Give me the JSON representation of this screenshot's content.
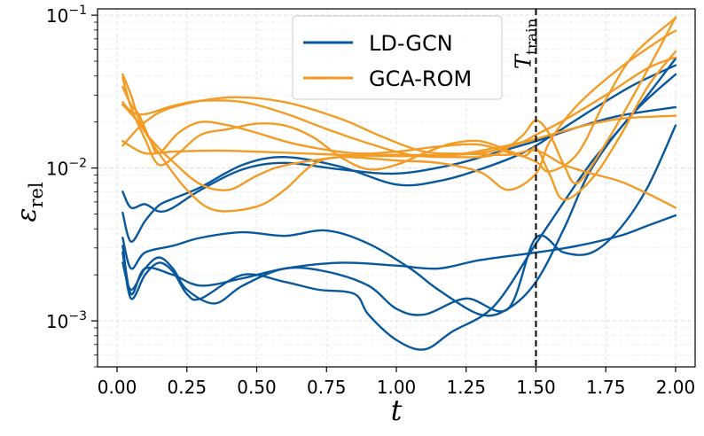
{
  "chart_data": {
    "type": "line",
    "xlabel": "t",
    "ylabel": "ε",
    "ylabel_sub": "rel",
    "yscale": "log",
    "xlim": [
      -0.07,
      2.07
    ],
    "ylim": [
      0.0005,
      0.11
    ],
    "x_ticks": [
      0,
      0.25,
      0.5,
      0.75,
      1.0,
      1.25,
      1.5,
      1.75,
      2.0
    ],
    "x_tick_labels": [
      "0.00",
      "0.25",
      "0.50",
      "0.75",
      "1.00",
      "1.25",
      "1.50",
      "1.75",
      "2.00"
    ],
    "y_ticks": [
      0.001,
      0.01,
      0.1
    ],
    "y_tick_base": "10",
    "y_tick_exponents": [
      "−3",
      "−2",
      "−1"
    ],
    "grid": true,
    "legend_position": "top-center",
    "legend": [
      {
        "label": "LD-GCN",
        "color": "#08589e"
      },
      {
        "label": "GCA-ROM",
        "color": "#f39c25"
      }
    ],
    "vline": {
      "x": 1.5,
      "label": "T",
      "label_sub": "train",
      "style": "dashed"
    },
    "series": [
      {
        "name": "LD-GCN",
        "color": "#08589e",
        "points": [
          [
            0.02,
            0.007
          ],
          [
            0.05,
            0.0055
          ],
          [
            0.1,
            0.0058
          ],
          [
            0.15,
            0.0052
          ],
          [
            0.2,
            0.0055
          ],
          [
            0.3,
            0.0072
          ],
          [
            0.45,
            0.0098
          ],
          [
            0.6,
            0.0108
          ],
          [
            0.8,
            0.0098
          ],
          [
            1.0,
            0.0092
          ],
          [
            1.2,
            0.0105
          ],
          [
            1.35,
            0.0125
          ],
          [
            1.5,
            0.015
          ],
          [
            1.65,
            0.0185
          ],
          [
            1.8,
            0.022
          ],
          [
            2.0,
            0.025
          ]
        ]
      },
      {
        "name": "LD-GCN",
        "color": "#08589e",
        "points": [
          [
            0.02,
            0.0051
          ],
          [
            0.05,
            0.0033
          ],
          [
            0.1,
            0.0045
          ],
          [
            0.15,
            0.0057
          ],
          [
            0.2,
            0.0063
          ],
          [
            0.3,
            0.0075
          ],
          [
            0.45,
            0.0105
          ],
          [
            0.6,
            0.0118
          ],
          [
            0.8,
            0.0102
          ],
          [
            1.0,
            0.0078
          ],
          [
            1.15,
            0.0082
          ],
          [
            1.3,
            0.0098
          ],
          [
            1.45,
            0.0125
          ],
          [
            1.55,
            0.016
          ],
          [
            1.7,
            0.024
          ],
          [
            1.85,
            0.035
          ],
          [
            2.0,
            0.047
          ]
        ]
      },
      {
        "name": "LD-GCN",
        "color": "#08589e",
        "points": [
          [
            0.02,
            0.0035
          ],
          [
            0.05,
            0.0022
          ],
          [
            0.1,
            0.0028
          ],
          [
            0.2,
            0.0031
          ],
          [
            0.3,
            0.0035
          ],
          [
            0.45,
            0.0038
          ],
          [
            0.6,
            0.0036
          ],
          [
            0.75,
            0.0039
          ],
          [
            0.9,
            0.0032
          ],
          [
            1.05,
            0.0022
          ],
          [
            1.15,
            0.0016
          ],
          [
            1.3,
            0.0011
          ],
          [
            1.4,
            0.0012
          ],
          [
            1.5,
            0.0018
          ],
          [
            1.6,
            0.004
          ],
          [
            1.7,
            0.01
          ],
          [
            1.85,
            0.023
          ],
          [
            2.0,
            0.041
          ]
        ]
      },
      {
        "name": "LD-GCN",
        "color": "#08589e",
        "points": [
          [
            0.02,
            0.0031
          ],
          [
            0.05,
            0.0015
          ],
          [
            0.1,
            0.0022
          ],
          [
            0.2,
            0.002
          ],
          [
            0.3,
            0.0017
          ],
          [
            0.45,
            0.0019
          ],
          [
            0.6,
            0.0022
          ],
          [
            0.8,
            0.0024
          ],
          [
            1.0,
            0.0023
          ],
          [
            1.15,
            0.0022
          ],
          [
            1.3,
            0.0025
          ],
          [
            1.5,
            0.0028
          ],
          [
            1.65,
            0.0031
          ],
          [
            1.8,
            0.0036
          ],
          [
            1.9,
            0.0042
          ],
          [
            2.0,
            0.0049
          ]
        ]
      },
      {
        "name": "LD-GCN",
        "color": "#08589e",
        "points": [
          [
            0.02,
            0.0028
          ],
          [
            0.05,
            0.0014
          ],
          [
            0.1,
            0.002
          ],
          [
            0.15,
            0.0024
          ],
          [
            0.2,
            0.0021
          ],
          [
            0.25,
            0.0015
          ],
          [
            0.3,
            0.0014
          ],
          [
            0.45,
            0.002
          ],
          [
            0.6,
            0.0018
          ],
          [
            0.72,
            0.0016
          ],
          [
            0.85,
            0.0015
          ],
          [
            0.9,
            0.0011
          ],
          [
            1.0,
            0.00075
          ],
          [
            1.1,
            0.00065
          ],
          [
            1.2,
            0.00085
          ],
          [
            1.35,
            0.00125
          ],
          [
            1.5,
            0.0032
          ],
          [
            1.6,
            0.006
          ],
          [
            1.7,
            0.011
          ],
          [
            1.8,
            0.018
          ],
          [
            1.9,
            0.03
          ],
          [
            2.0,
            0.052
          ]
        ]
      },
      {
        "name": "LD-GCN",
        "color": "#08589e",
        "points": [
          [
            0.02,
            0.0024
          ],
          [
            0.05,
            0.0016
          ],
          [
            0.1,
            0.0022
          ],
          [
            0.15,
            0.0026
          ],
          [
            0.2,
            0.0022
          ],
          [
            0.25,
            0.0016
          ],
          [
            0.35,
            0.0013
          ],
          [
            0.45,
            0.0017
          ],
          [
            0.6,
            0.0022
          ],
          [
            0.75,
            0.0021
          ],
          [
            0.9,
            0.0017
          ],
          [
            1.0,
            0.0012
          ],
          [
            1.1,
            0.0011
          ],
          [
            1.25,
            0.0014
          ],
          [
            1.4,
            0.0012
          ],
          [
            1.5,
            0.0035
          ],
          [
            1.6,
            0.0028
          ],
          [
            1.7,
            0.0028
          ],
          [
            1.8,
            0.004
          ],
          [
            1.9,
            0.0075
          ],
          [
            2.0,
            0.019
          ]
        ]
      },
      {
        "name": "GCA-ROM",
        "color": "#f39c25",
        "points": [
          [
            0.02,
            0.041
          ],
          [
            0.05,
            0.03
          ],
          [
            0.08,
            0.0205
          ],
          [
            0.12,
            0.0155
          ],
          [
            0.2,
            0.011
          ],
          [
            0.3,
            0.0078
          ],
          [
            0.4,
            0.0072
          ],
          [
            0.5,
            0.0089
          ],
          [
            0.6,
            0.0104
          ],
          [
            0.8,
            0.0118
          ],
          [
            1.0,
            0.0122
          ],
          [
            1.2,
            0.0122
          ],
          [
            1.35,
            0.0135
          ],
          [
            1.45,
            0.0148
          ],
          [
            1.5,
            0.0165
          ],
          [
            1.6,
            0.0205
          ],
          [
            1.75,
            0.03
          ],
          [
            1.9,
            0.045
          ],
          [
            2.0,
            0.053
          ]
        ]
      },
      {
        "name": "GCA-ROM",
        "color": "#f39c25",
        "points": [
          [
            0.02,
            0.026
          ],
          [
            0.08,
            0.0195
          ],
          [
            0.15,
            0.0125
          ],
          [
            0.25,
            0.0072
          ],
          [
            0.35,
            0.0053
          ],
          [
            0.5,
            0.0056
          ],
          [
            0.6,
            0.0072
          ],
          [
            0.7,
            0.0105
          ],
          [
            0.8,
            0.0118
          ],
          [
            1.0,
            0.0112
          ],
          [
            1.15,
            0.0108
          ],
          [
            1.3,
            0.0094
          ],
          [
            1.4,
            0.0072
          ],
          [
            1.5,
            0.0092
          ],
          [
            1.55,
            0.015
          ],
          [
            1.65,
            0.026
          ],
          [
            1.8,
            0.045
          ],
          [
            1.95,
            0.07
          ],
          [
            2.0,
            0.079
          ]
        ]
      },
      {
        "name": "GCA-ROM",
        "color": "#f39c25",
        "points": [
          [
            0.02,
            0.014
          ],
          [
            0.1,
            0.02
          ],
          [
            0.2,
            0.025
          ],
          [
            0.4,
            0.029
          ],
          [
            0.6,
            0.027
          ],
          [
            0.8,
            0.021
          ],
          [
            0.95,
            0.016
          ],
          [
            1.1,
            0.0128
          ],
          [
            1.25,
            0.0124
          ],
          [
            1.4,
            0.0122
          ],
          [
            1.5,
            0.013
          ],
          [
            1.6,
            0.0105
          ],
          [
            1.7,
            0.0092
          ],
          [
            1.8,
            0.0082
          ],
          [
            1.9,
            0.0068
          ],
          [
            2.0,
            0.0055
          ]
        ]
      },
      {
        "name": "GCA-ROM",
        "color": "#f39c25",
        "points": [
          [
            0.02,
            0.015
          ],
          [
            0.1,
            0.0125
          ],
          [
            0.2,
            0.0128
          ],
          [
            0.35,
            0.013
          ],
          [
            0.5,
            0.0128
          ],
          [
            0.65,
            0.0125
          ],
          [
            0.8,
            0.0122
          ],
          [
            0.95,
            0.012
          ],
          [
            1.1,
            0.012
          ],
          [
            1.25,
            0.0123
          ],
          [
            1.35,
            0.013
          ],
          [
            1.5,
            0.0155
          ],
          [
            1.65,
            0.0185
          ],
          [
            1.8,
            0.021
          ],
          [
            2.0,
            0.022
          ]
        ]
      },
      {
        "name": "GCA-ROM",
        "color": "#f39c25",
        "points": [
          [
            0.02,
            0.034
          ],
          [
            0.05,
            0.026
          ],
          [
            0.08,
            0.022
          ],
          [
            0.12,
            0.015
          ],
          [
            0.15,
            0.0125
          ],
          [
            0.22,
            0.017
          ],
          [
            0.3,
            0.02
          ],
          [
            0.4,
            0.019
          ],
          [
            0.5,
            0.017
          ],
          [
            0.65,
            0.0142
          ],
          [
            0.85,
            0.0125
          ],
          [
            1.0,
            0.0128
          ],
          [
            1.15,
            0.0138
          ],
          [
            1.3,
            0.0142
          ],
          [
            1.45,
            0.012
          ],
          [
            1.5,
            0.0135
          ],
          [
            1.55,
            0.009
          ],
          [
            1.6,
            0.0062
          ],
          [
            1.7,
            0.0085
          ],
          [
            1.8,
            0.016
          ],
          [
            1.9,
            0.034
          ],
          [
            2.0,
            0.058
          ]
        ]
      },
      {
        "name": "GCA-ROM",
        "color": "#f39c25",
        "points": [
          [
            0.02,
            0.039
          ],
          [
            0.05,
            0.025
          ],
          [
            0.1,
            0.0155
          ],
          [
            0.15,
            0.0105
          ],
          [
            0.22,
            0.0125
          ],
          [
            0.3,
            0.0165
          ],
          [
            0.4,
            0.018
          ],
          [
            0.5,
            0.0195
          ],
          [
            0.6,
            0.019
          ],
          [
            0.7,
            0.016
          ],
          [
            0.8,
            0.0118
          ],
          [
            0.9,
            0.0098
          ],
          [
            1.0,
            0.0105
          ],
          [
            1.1,
            0.0125
          ],
          [
            1.2,
            0.0145
          ],
          [
            1.3,
            0.015
          ],
          [
            1.4,
            0.013
          ],
          [
            1.5,
            0.011
          ],
          [
            1.55,
            0.0095
          ],
          [
            1.65,
            0.0125
          ],
          [
            1.75,
            0.028
          ],
          [
            1.85,
            0.055
          ],
          [
            2.0,
            0.096
          ]
        ]
      },
      {
        "name": "GCA-ROM",
        "color": "#f39c25",
        "points": [
          [
            0.02,
            0.027
          ],
          [
            0.05,
            0.0235
          ],
          [
            0.1,
            0.0225
          ],
          [
            0.2,
            0.0255
          ],
          [
            0.3,
            0.0275
          ],
          [
            0.45,
            0.027
          ],
          [
            0.6,
            0.0228
          ],
          [
            0.75,
            0.018
          ],
          [
            0.9,
            0.0145
          ],
          [
            1.05,
            0.0122
          ],
          [
            1.2,
            0.0118
          ],
          [
            1.35,
            0.0122
          ],
          [
            1.45,
            0.0162
          ],
          [
            1.5,
            0.0205
          ],
          [
            1.55,
            0.0165
          ],
          [
            1.6,
            0.0105
          ],
          [
            1.65,
            0.008
          ],
          [
            1.75,
            0.0145
          ],
          [
            1.85,
            0.03
          ],
          [
            1.95,
            0.065
          ],
          [
            2.0,
            0.097
          ]
        ]
      }
    ]
  }
}
